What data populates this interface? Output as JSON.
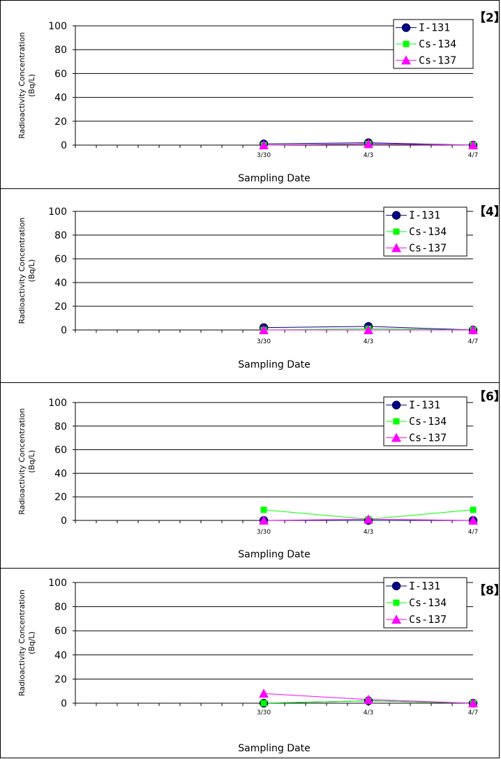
{
  "series_colors": {
    "I-131": "#000080",
    "Cs-134": "#00ff00",
    "Cs-137": "#ff00ff"
  },
  "chart_data": [
    {
      "type": "line",
      "panel_tag": "【2】",
      "xlabel": "Sampling Date",
      "ylabel_line1": "Radioactivity Concentration",
      "ylabel_line2": "(Bq/L)",
      "ylim": [
        0,
        100
      ],
      "yticks": [
        "0",
        "20",
        "40",
        "60",
        "80",
        "100"
      ],
      "x_dates": [
        "3/30",
        "4/3",
        "4/7"
      ],
      "legend_position": "top-right",
      "series": [
        {
          "name": "I-131",
          "marker": "circle",
          "values": [
            1,
            2,
            0
          ]
        },
        {
          "name": "Cs-134",
          "marker": "square",
          "values": [
            0,
            1,
            0
          ]
        },
        {
          "name": "Cs-137",
          "marker": "triangle",
          "values": [
            0,
            1,
            0
          ]
        }
      ]
    },
    {
      "type": "line",
      "panel_tag": "【4】",
      "xlabel": "Sampling Date",
      "ylabel_line1": "Radioactivity Concentration",
      "ylabel_line2": "(Bq/L)",
      "ylim": [
        0,
        100
      ],
      "yticks": [
        "0",
        "20",
        "40",
        "60",
        "80",
        "100"
      ],
      "x_dates": [
        "3/30",
        "4/3",
        "4/7"
      ],
      "legend_position": "top-right",
      "series": [
        {
          "name": "I-131",
          "marker": "circle",
          "values": [
            2,
            3,
            0
          ]
        },
        {
          "name": "Cs-134",
          "marker": "square",
          "values": [
            0,
            1,
            0
          ]
        },
        {
          "name": "Cs-137",
          "marker": "triangle",
          "values": [
            0,
            0,
            0
          ]
        }
      ]
    },
    {
      "type": "line",
      "panel_tag": "【6】",
      "xlabel": "Sampling Date",
      "ylabel_line1": "Radioactivity Concentration",
      "ylabel_line2": "(Bq/L)",
      "ylim": [
        0,
        100
      ],
      "yticks": [
        "0",
        "20",
        "40",
        "60",
        "80",
        "100"
      ],
      "x_dates": [
        "3/30",
        "4/3",
        "4/7"
      ],
      "legend_position": "top-right",
      "series": [
        {
          "name": "I-131",
          "marker": "circle",
          "values": [
            0,
            0,
            0
          ]
        },
        {
          "name": "Cs-134",
          "marker": "square",
          "values": [
            9,
            1,
            9
          ]
        },
        {
          "name": "Cs-137",
          "marker": "triangle",
          "values": [
            0,
            1,
            0
          ]
        }
      ]
    },
    {
      "type": "line",
      "panel_tag": "【8】",
      "xlabel": "Sampling Date",
      "ylabel_line1": "Radioactivity Concentration",
      "ylabel_line2": "(Bq/L)",
      "ylim": [
        0,
        100
      ],
      "yticks": [
        "0",
        "20",
        "40",
        "60",
        "80",
        "100"
      ],
      "x_dates": [
        "3/30",
        "4/3",
        "4/7"
      ],
      "legend_position": "top-right",
      "series": [
        {
          "name": "I-131",
          "marker": "circle",
          "values": [
            0,
            2,
            0
          ]
        },
        {
          "name": "Cs-134",
          "marker": "square",
          "values": [
            0,
            2,
            0
          ]
        },
        {
          "name": "Cs-137",
          "marker": "triangle",
          "values": [
            8,
            3,
            0
          ]
        }
      ]
    }
  ]
}
